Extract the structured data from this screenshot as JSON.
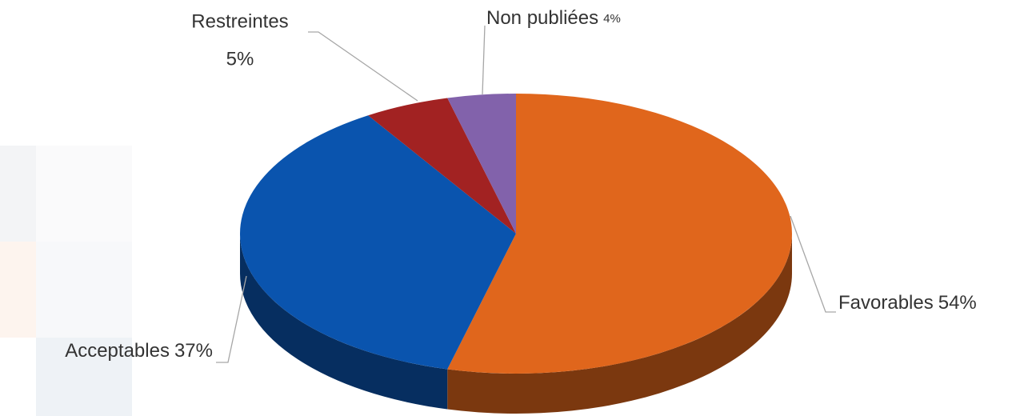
{
  "chart_data": {
    "type": "pie",
    "categories": [
      "Favorables",
      "Acceptables",
      "Restreintes",
      "Non publiées"
    ],
    "values": [
      54,
      37,
      5,
      4
    ],
    "value_labels": [
      "54%",
      "37%",
      "5%",
      "4%"
    ],
    "colors": [
      "#e0661c",
      "#0a54ae",
      "#a22222",
      "#8262ab"
    ]
  }
}
